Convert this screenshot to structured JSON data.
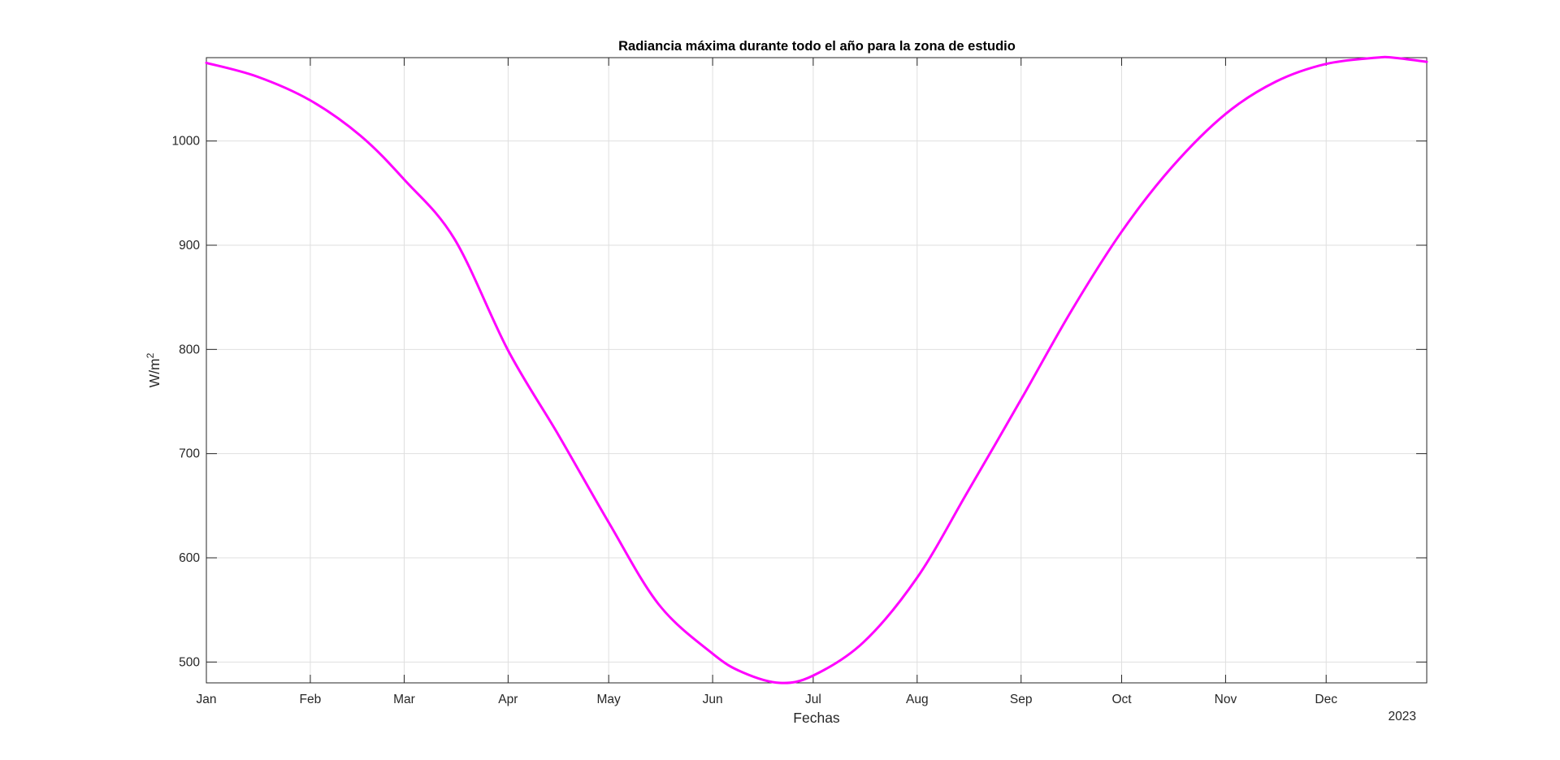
{
  "chart_data": {
    "type": "line",
    "title": "Radiancia máxima durante todo el año para la zona de estudio",
    "xlabel": "Fechas",
    "ylabel": "W/m",
    "ylabel_superscript": "2",
    "x_axis_secondary_label": "2023",
    "xlim": [
      "2023-01-01",
      "2023-12-31"
    ],
    "ylim": [
      480,
      1080
    ],
    "grid": true,
    "x_ticks": [
      {
        "date": "2023-01-01",
        "label": "Jan"
      },
      {
        "date": "2023-02-01",
        "label": "Feb"
      },
      {
        "date": "2023-03-01",
        "label": "Mar"
      },
      {
        "date": "2023-04-01",
        "label": "Apr"
      },
      {
        "date": "2023-05-01",
        "label": "May"
      },
      {
        "date": "2023-06-01",
        "label": "Jun"
      },
      {
        "date": "2023-07-01",
        "label": "Jul"
      },
      {
        "date": "2023-08-01",
        "label": "Aug"
      },
      {
        "date": "2023-09-01",
        "label": "Sep"
      },
      {
        "date": "2023-10-01",
        "label": "Oct"
      },
      {
        "date": "2023-11-01",
        "label": "Nov"
      },
      {
        "date": "2023-12-01",
        "label": "Dec"
      }
    ],
    "y_ticks": [
      {
        "value": 500,
        "label": "500"
      },
      {
        "value": 600,
        "label": "600"
      },
      {
        "value": 700,
        "label": "700"
      },
      {
        "value": 800,
        "label": "800"
      },
      {
        "value": 900,
        "label": "900"
      },
      {
        "value": 1000,
        "label": "1000"
      }
    ],
    "series": [
      {
        "color": "#ff00ff",
        "x": [
          "2023-01-01",
          "2023-01-16",
          "2023-02-01",
          "2023-02-16",
          "2023-03-01",
          "2023-03-16",
          "2023-04-01",
          "2023-04-16",
          "2023-05-01",
          "2023-05-16",
          "2023-06-01",
          "2023-06-10",
          "2023-06-21",
          "2023-07-01",
          "2023-07-16",
          "2023-08-01",
          "2023-08-16",
          "2023-09-01",
          "2023-09-16",
          "2023-10-01",
          "2023-10-16",
          "2023-11-01",
          "2023-11-16",
          "2023-12-01",
          "2023-12-16",
          "2023-12-21",
          "2023-12-31"
        ],
        "y": [
          1075,
          1062,
          1039,
          1005,
          963,
          906,
          799,
          718,
          634,
          555,
          508,
          490,
          480,
          487,
          519,
          581,
          663,
          752,
          837,
          913,
          975,
          1026,
          1057,
          1074,
          1080,
          1080,
          1076
        ]
      }
    ]
  }
}
